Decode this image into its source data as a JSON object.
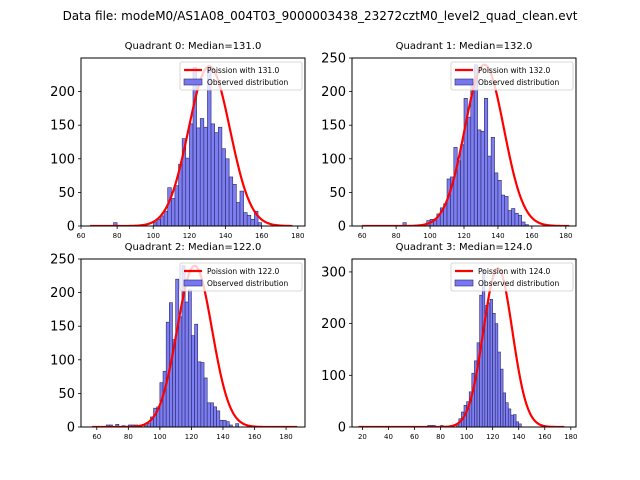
{
  "chart_data": {
    "type": "bar",
    "title": "Data file: modeM0/AS1A08_004T03_9000003438_23272cztM0_level2_quad_clean.evt",
    "subplots": [
      {
        "title": "Quadrant 0: Median=131.0",
        "median": 131.0,
        "xlim": [
          60,
          184
        ],
        "ylim": [
          0,
          250
        ],
        "xticks": [
          60,
          80,
          100,
          120,
          140,
          160,
          180
        ],
        "yticks": [
          0,
          50,
          100,
          150,
          200
        ],
        "bin_width": 2,
        "bins": [
          {
            "x": 78,
            "count": 5
          },
          {
            "x": 100,
            "count": 5
          },
          {
            "x": 102,
            "count": 10
          },
          {
            "x": 104,
            "count": 15
          },
          {
            "x": 106,
            "count": 22
          },
          {
            "x": 108,
            "count": 57
          },
          {
            "x": 110,
            "count": 41
          },
          {
            "x": 112,
            "count": 60
          },
          {
            "x": 114,
            "count": 92
          },
          {
            "x": 116,
            "count": 130
          },
          {
            "x": 118,
            "count": 101
          },
          {
            "x": 120,
            "count": 152
          },
          {
            "x": 122,
            "count": 236
          },
          {
            "x": 124,
            "count": 146
          },
          {
            "x": 126,
            "count": 160
          },
          {
            "x": 128,
            "count": 147
          },
          {
            "x": 130,
            "count": 236
          },
          {
            "x": 132,
            "count": 152
          },
          {
            "x": 134,
            "count": 139
          },
          {
            "x": 136,
            "count": 147
          },
          {
            "x": 138,
            "count": 115
          },
          {
            "x": 140,
            "count": 100
          },
          {
            "x": 142,
            "count": 73
          },
          {
            "x": 144,
            "count": 62
          },
          {
            "x": 146,
            "count": 35
          },
          {
            "x": 148,
            "count": 52
          },
          {
            "x": 150,
            "count": 20
          },
          {
            "x": 152,
            "count": 16
          },
          {
            "x": 154,
            "count": 10
          },
          {
            "x": 156,
            "count": 22
          },
          {
            "x": 158,
            "count": 5
          }
        ],
        "poisson_mean": 131.0,
        "poisson_peak": 238,
        "poisson_range": [
          65,
          177
        ],
        "legend": {
          "line_label": "Poission with 131.0",
          "bar_label": "Observed distribution",
          "position": "upper-right"
        }
      },
      {
        "title": "Quadrant 1: Median=132.0",
        "median": 132.0,
        "xlim": [
          54,
          186
        ],
        "ylim": [
          0,
          250
        ],
        "xticks": [
          60,
          80,
          100,
          120,
          140,
          160,
          180
        ],
        "yticks": [
          0,
          50,
          100,
          150,
          200,
          250
        ],
        "bin_width": 2,
        "bins": [
          {
            "x": 84,
            "count": 5
          },
          {
            "x": 98,
            "count": 8
          },
          {
            "x": 100,
            "count": 10
          },
          {
            "x": 102,
            "count": 8
          },
          {
            "x": 104,
            "count": 18
          },
          {
            "x": 106,
            "count": 27
          },
          {
            "x": 108,
            "count": 33
          },
          {
            "x": 110,
            "count": 70
          },
          {
            "x": 112,
            "count": 73
          },
          {
            "x": 114,
            "count": 117
          },
          {
            "x": 116,
            "count": 97
          },
          {
            "x": 118,
            "count": 121
          },
          {
            "x": 120,
            "count": 190
          },
          {
            "x": 122,
            "count": 162
          },
          {
            "x": 124,
            "count": 214
          },
          {
            "x": 126,
            "count": 240
          },
          {
            "x": 128,
            "count": 143
          },
          {
            "x": 130,
            "count": 141
          },
          {
            "x": 132,
            "count": 190
          },
          {
            "x": 134,
            "count": 104
          },
          {
            "x": 136,
            "count": 132
          },
          {
            "x": 138,
            "count": 79
          },
          {
            "x": 140,
            "count": 68
          },
          {
            "x": 142,
            "count": 46
          },
          {
            "x": 144,
            "count": 44
          },
          {
            "x": 146,
            "count": 23
          },
          {
            "x": 148,
            "count": 26
          },
          {
            "x": 150,
            "count": 19
          },
          {
            "x": 152,
            "count": 16
          },
          {
            "x": 154,
            "count": 6
          },
          {
            "x": 156,
            "count": 2
          }
        ],
        "poisson_mean": 132.0,
        "poisson_peak": 240,
        "poisson_range": [
          60,
          182
        ],
        "legend": {
          "line_label": "Poission with 132.0",
          "bar_label": "Observed distribution",
          "position": "upper-right"
        }
      },
      {
        "title": "Quadrant 2: Median=122.0",
        "median": 122.0,
        "xlim": [
          50,
          192
        ],
        "ylim": [
          0,
          250
        ],
        "xticks": [
          60,
          80,
          100,
          120,
          140,
          160,
          180
        ],
        "yticks": [
          0,
          50,
          100,
          150,
          200,
          250
        ],
        "bin_width": 2,
        "bins": [
          {
            "x": 66,
            "count": 3
          },
          {
            "x": 68,
            "count": 3
          },
          {
            "x": 72,
            "count": 4
          },
          {
            "x": 76,
            "count": 2
          },
          {
            "x": 80,
            "count": 3
          },
          {
            "x": 82,
            "count": 3
          },
          {
            "x": 84,
            "count": 3
          },
          {
            "x": 90,
            "count": 2
          },
          {
            "x": 92,
            "count": 5
          },
          {
            "x": 94,
            "count": 15
          },
          {
            "x": 96,
            "count": 28
          },
          {
            "x": 98,
            "count": 30
          },
          {
            "x": 100,
            "count": 66
          },
          {
            "x": 102,
            "count": 83
          },
          {
            "x": 104,
            "count": 156
          },
          {
            "x": 106,
            "count": 185
          },
          {
            "x": 108,
            "count": 130
          },
          {
            "x": 110,
            "count": 220
          },
          {
            "x": 112,
            "count": 164
          },
          {
            "x": 114,
            "count": 240
          },
          {
            "x": 116,
            "count": 186
          },
          {
            "x": 118,
            "count": 204
          },
          {
            "x": 120,
            "count": 136
          },
          {
            "x": 122,
            "count": 153
          },
          {
            "x": 124,
            "count": 97
          },
          {
            "x": 126,
            "count": 96
          },
          {
            "x": 128,
            "count": 73
          },
          {
            "x": 130,
            "count": 36
          },
          {
            "x": 132,
            "count": 36
          },
          {
            "x": 134,
            "count": 30
          },
          {
            "x": 136,
            "count": 24
          },
          {
            "x": 138,
            "count": 10
          },
          {
            "x": 140,
            "count": 10
          },
          {
            "x": 142,
            "count": 8
          },
          {
            "x": 144,
            "count": 3
          },
          {
            "x": 148,
            "count": 5
          }
        ],
        "poisson_mean": 122.0,
        "poisson_peak": 240,
        "poisson_range": [
          57,
          187
        ],
        "legend": {
          "line_label": "Poission with 122.0",
          "bar_label": "Observed distribution",
          "position": "upper-right"
        }
      },
      {
        "title": "Quadrant 3: Median=124.0",
        "median": 124.0,
        "xlim": [
          12,
          184
        ],
        "ylim": [
          0,
          325
        ],
        "xticks": [
          20,
          40,
          60,
          80,
          100,
          120,
          140,
          160,
          180
        ],
        "yticks": [
          0,
          100,
          200,
          300
        ],
        "bin_width": 2,
        "bins": [
          {
            "x": 70,
            "count": 3
          },
          {
            "x": 72,
            "count": 3
          },
          {
            "x": 74,
            "count": 3
          },
          {
            "x": 80,
            "count": 3
          },
          {
            "x": 92,
            "count": 6
          },
          {
            "x": 94,
            "count": 16
          },
          {
            "x": 96,
            "count": 29
          },
          {
            "x": 98,
            "count": 42
          },
          {
            "x": 100,
            "count": 49
          },
          {
            "x": 102,
            "count": 68
          },
          {
            "x": 104,
            "count": 104
          },
          {
            "x": 106,
            "count": 128
          },
          {
            "x": 108,
            "count": 163
          },
          {
            "x": 110,
            "count": 255
          },
          {
            "x": 112,
            "count": 305
          },
          {
            "x": 114,
            "count": 235
          },
          {
            "x": 116,
            "count": 240
          },
          {
            "x": 118,
            "count": 247
          },
          {
            "x": 120,
            "count": 220
          },
          {
            "x": 122,
            "count": 200
          },
          {
            "x": 124,
            "count": 145
          },
          {
            "x": 126,
            "count": 112
          },
          {
            "x": 128,
            "count": 66
          },
          {
            "x": 130,
            "count": 47
          },
          {
            "x": 132,
            "count": 35
          },
          {
            "x": 134,
            "count": 23
          },
          {
            "x": 136,
            "count": 24
          },
          {
            "x": 138,
            "count": 10
          },
          {
            "x": 140,
            "count": 6
          }
        ],
        "poisson_mean": 124.0,
        "poisson_peak": 307,
        "poisson_range": [
          17,
          175
        ],
        "legend": {
          "line_label": "Poission with 124.0",
          "bar_label": "Observed distribution",
          "position": "upper-right"
        }
      }
    ],
    "colors": {
      "bar_fill": "#7777f2",
      "bar_edge": "#2a2a66",
      "poisson_line": "#ff0000"
    }
  }
}
